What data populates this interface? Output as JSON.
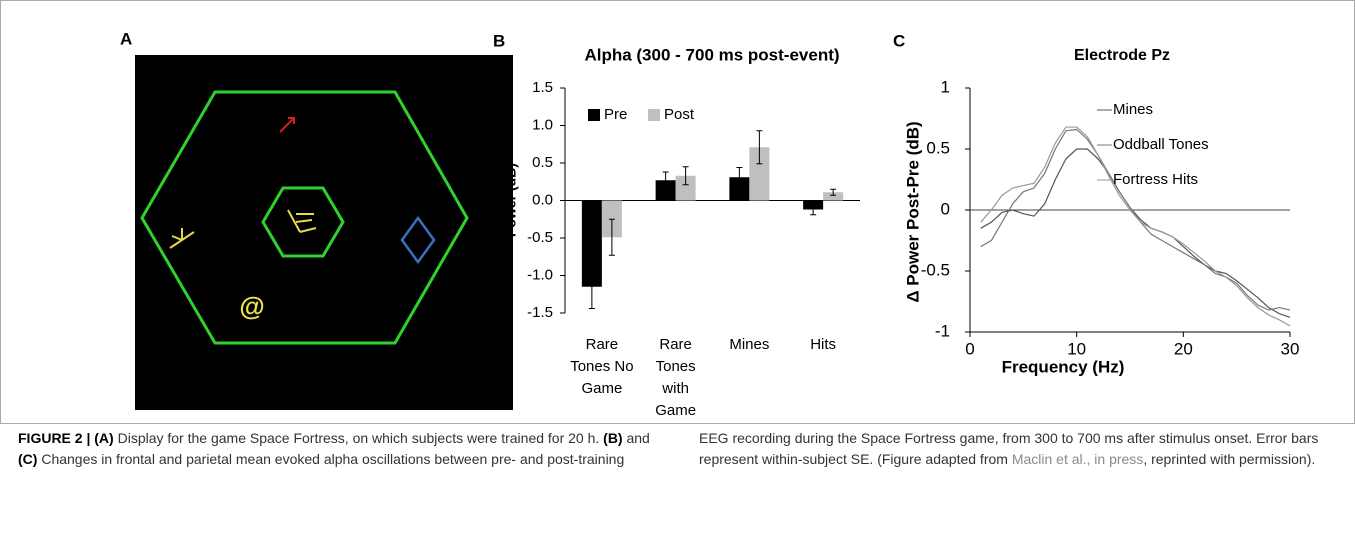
{
  "panel_labels": [
    "A",
    "B",
    "C"
  ],
  "game_screen": {
    "mine_symbol": "@"
  },
  "chart_data": [
    {
      "type": "bar",
      "title": "Alpha (300 - 700 ms post-event)",
      "y_label": "Power (dB)",
      "categories": [
        "Rare Tones No Game",
        "Rare Tones with Game",
        "Mines",
        "Hits"
      ],
      "series": [
        {
          "name": "Pre",
          "color": "#000000",
          "values": [
            -1.15,
            0.27,
            0.31,
            -0.12
          ],
          "errors": [
            0.29,
            0.11,
            0.13,
            0.07
          ]
        },
        {
          "name": "Post",
          "color": "#bfbfbf",
          "values": [
            -0.49,
            0.33,
            0.71,
            0.11
          ],
          "errors": [
            0.24,
            0.12,
            0.22,
            0.04
          ]
        }
      ],
      "ylim": [
        -1.5,
        1.5
      ],
      "yticks": [
        -1.5,
        {
          "value": -1,
          "label": "-1.0"
        },
        -0.5,
        {
          "value": 0,
          "label": "0.0"
        },
        0.5,
        {
          "value": 1,
          "label": "1.0"
        },
        1.5
      ],
      "legend": "upper left"
    },
    {
      "type": "line",
      "title": "Electrode Pz",
      "x_label": "Frequency (Hz)",
      "y_label": "Δ Power Post-Pre (dB)",
      "x": [
        1,
        2,
        3,
        4,
        5,
        6,
        7,
        8,
        9,
        10,
        11,
        12,
        13,
        14,
        15,
        16,
        17,
        18,
        19,
        20,
        21,
        22,
        23,
        24,
        25,
        26,
        27,
        28,
        29,
        30
      ],
      "series": [
        {
          "name": "Mines",
          "color": "#555555",
          "values": [
            -0.15,
            -0.1,
            -0.02,
            0,
            -0.03,
            -0.05,
            0.05,
            0.25,
            0.42,
            0.5,
            0.5,
            0.42,
            0.3,
            0.15,
            0.02,
            -0.08,
            -0.15,
            -0.18,
            -0.22,
            -0.3,
            -0.38,
            -0.45,
            -0.5,
            -0.52,
            -0.58,
            -0.65,
            -0.72,
            -0.8,
            -0.85,
            -0.88
          ]
        },
        {
          "name": "Oddball Tones",
          "color": "#777777",
          "values": [
            -0.3,
            -0.25,
            -0.1,
            0.05,
            0.15,
            0.18,
            0.3,
            0.5,
            0.65,
            0.66,
            0.58,
            0.45,
            0.3,
            0.15,
            0.02,
            -0.1,
            -0.2,
            -0.25,
            -0.3,
            -0.35,
            -0.4,
            -0.45,
            -0.52,
            -0.55,
            -0.6,
            -0.7,
            -0.78,
            -0.82,
            -0.8,
            -0.82
          ]
        },
        {
          "name": "Fortress Hits",
          "color": "#999999",
          "values": [
            -0.1,
            0,
            0.12,
            0.18,
            0.2,
            0.22,
            0.35,
            0.55,
            0.68,
            0.68,
            0.6,
            0.45,
            0.28,
            0.12,
            0,
            -0.1,
            -0.15,
            -0.18,
            -0.22,
            -0.28,
            -0.35,
            -0.42,
            -0.5,
            -0.55,
            -0.62,
            -0.72,
            -0.8,
            -0.86,
            -0.9,
            -0.95
          ]
        }
      ],
      "xlim": [
        0,
        30
      ],
      "xticks": [
        0,
        10,
        20,
        30
      ],
      "ylim": [
        -1,
        1
      ],
      "yticks": [
        -1,
        -0.5,
        0,
        0.5,
        1
      ],
      "zero_line": true,
      "legend": "upper right"
    }
  ],
  "caption": {
    "parts": [
      "FIGURE 2 | (A)",
      " Display for the game Space Fortress, on which subjects were trained for 20 h. ",
      "(B)",
      " and ",
      "(C)",
      " Changes in frontal and parietal mean evoked alpha oscillations between pre- and post-training EEG recording during the Space Fortress game, from 300 to 700 ms after stimulus onset. Error bars represent within-subject SE. (Figure adapted from ",
      "Maclin et al., in press",
      ", reprinted with permission)."
    ]
  }
}
